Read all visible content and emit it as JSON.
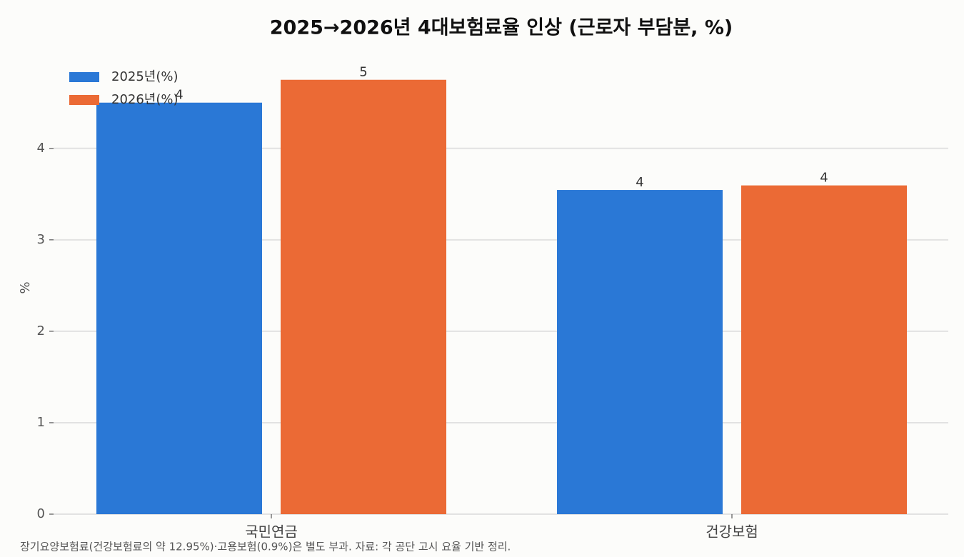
{
  "chart_data": {
    "type": "bar",
    "title": "2025→2026년 4대보험료율 인상 (근로자 부담분, %)",
    "y_label": "%",
    "note": "장기요양보험료(건강보험료의 약 12.95%)·고용보험(0.9%)은 별도 부과. 자료: 각 공단 고시 요율 기반 정리.",
    "categories": [
      "국민연금",
      "건강보험"
    ],
    "series": [
      {
        "name": "2025년(%)",
        "color": "#2a78d6",
        "values": [
          4.5,
          3.545
        ],
        "value_labels": [
          "4",
          "4"
        ]
      },
      {
        "name": "2026년(%)",
        "color": "#eb6a35",
        "values": [
          4.75,
          3.595
        ],
        "value_labels": [
          "5",
          "4"
        ]
      }
    ],
    "ylim": [
      0,
      4.99
    ],
    "yticks": [
      0,
      1,
      2,
      3,
      4
    ],
    "grid": true,
    "legend": "upper-left"
  }
}
